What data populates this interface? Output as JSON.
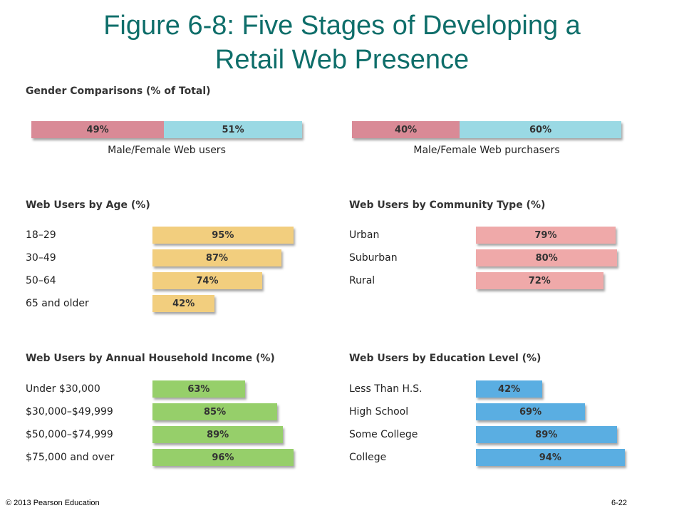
{
  "slide": {
    "title_line1": "Figure 6-8: Five Stages of Developing a",
    "title_line2": "Retail Web Presence",
    "copyright": "© 2013 Pearson Education",
    "page_number": "6-22"
  },
  "colors": {
    "title": "#0e6e6a",
    "male": "#d98a96",
    "female": "#9ad9e4",
    "age": "#f2ce7e",
    "community": "#efa9a9",
    "income": "#96cf6a",
    "education": "#5aaee2"
  },
  "chart_data": [
    {
      "type": "bar",
      "title": "Gender Comparisons (% of Total)",
      "stacked": true,
      "groups": [
        {
          "caption": "Male/Female Web users",
          "values": [
            49,
            51
          ],
          "labels": [
            "49%",
            "51%"
          ]
        },
        {
          "caption": "Male/Female Web purchasers",
          "values": [
            40,
            60
          ],
          "labels": [
            "40%",
            "60%"
          ]
        }
      ]
    },
    {
      "type": "bar",
      "title": "Web Users by Age (%)",
      "categories": [
        "18–29",
        "30–49",
        "50–64",
        "65 and older"
      ],
      "values": [
        95,
        87,
        74,
        42
      ],
      "labels": [
        "95%",
        "87%",
        "74%",
        "42%"
      ]
    },
    {
      "type": "bar",
      "title": "Web Users by Community Type (%)",
      "categories": [
        "Urban",
        "Suburban",
        "Rural"
      ],
      "values": [
        79,
        80,
        72
      ],
      "labels": [
        "79%",
        "80%",
        "72%"
      ]
    },
    {
      "type": "bar",
      "title": "Web Users by Annual Household Income (%)",
      "categories": [
        "Under $30,000",
        "$30,000–$49,999",
        "$50,000–$74,999",
        "$75,000 and over"
      ],
      "values": [
        63,
        85,
        89,
        96
      ],
      "labels": [
        "63%",
        "85%",
        "89%",
        "96%"
      ]
    },
    {
      "type": "bar",
      "title": "Web Users by Education Level (%)",
      "categories": [
        "Less Than H.S.",
        "High School",
        "Some College",
        "College"
      ],
      "values": [
        42,
        69,
        89,
        94
      ],
      "labels": [
        "42%",
        "69%",
        "89%",
        "94%"
      ]
    }
  ]
}
